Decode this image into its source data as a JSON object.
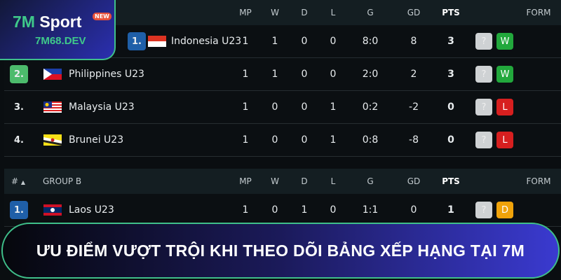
{
  "logo": {
    "brand_a": "7M",
    "brand_b": "Sport",
    "badge": "NEW",
    "domain": "7M68.DEV"
  },
  "columns": {
    "hash": "#",
    "mp": "MP",
    "w": "W",
    "d": "D",
    "l": "L",
    "g": "G",
    "gd": "GD",
    "pts": "PTS",
    "form": "FORM"
  },
  "group_a": {
    "rows": [
      {
        "rank": "1.",
        "team": "Indonesia U23",
        "mp": "1",
        "w": "1",
        "d": "0",
        "l": "0",
        "g": "8:0",
        "gd": "8",
        "pts": "3",
        "form": [
          "?",
          "W"
        ]
      },
      {
        "rank": "2.",
        "team": "Philippines U23",
        "mp": "1",
        "w": "1",
        "d": "0",
        "l": "0",
        "g": "2:0",
        "gd": "2",
        "pts": "3",
        "form": [
          "?",
          "W"
        ]
      },
      {
        "rank": "3.",
        "team": "Malaysia U23",
        "mp": "1",
        "w": "0",
        "d": "0",
        "l": "1",
        "g": "0:2",
        "gd": "-2",
        "pts": "0",
        "form": [
          "?",
          "L"
        ]
      },
      {
        "rank": "4.",
        "team": "Brunei U23",
        "mp": "1",
        "w": "0",
        "d": "0",
        "l": "1",
        "g": "0:8",
        "gd": "-8",
        "pts": "0",
        "form": [
          "?",
          "L"
        ]
      }
    ]
  },
  "group_b": {
    "title": "GROUP B",
    "sort_arrow": "▲",
    "rows": [
      {
        "rank": "1.",
        "team": "Laos U23",
        "mp": "1",
        "w": "0",
        "d": "1",
        "l": "0",
        "g": "1:1",
        "gd": "0",
        "pts": "1",
        "form": [
          "?",
          "D"
        ]
      }
    ]
  },
  "banner": {
    "text": "ƯU ĐIỂM VƯỢT TRỘI KHI THEO DÕI BẢNG XẾP HẠNG TẠI 7M"
  },
  "colors": {
    "win": "#22a83c",
    "loss": "#d71f1f",
    "draw": "#f0a30a",
    "unknown": "#cfd2d4",
    "rank_green": "#4cbb6c",
    "rank_blue": "#1f5fa8",
    "accent": "#3fbf8a"
  }
}
